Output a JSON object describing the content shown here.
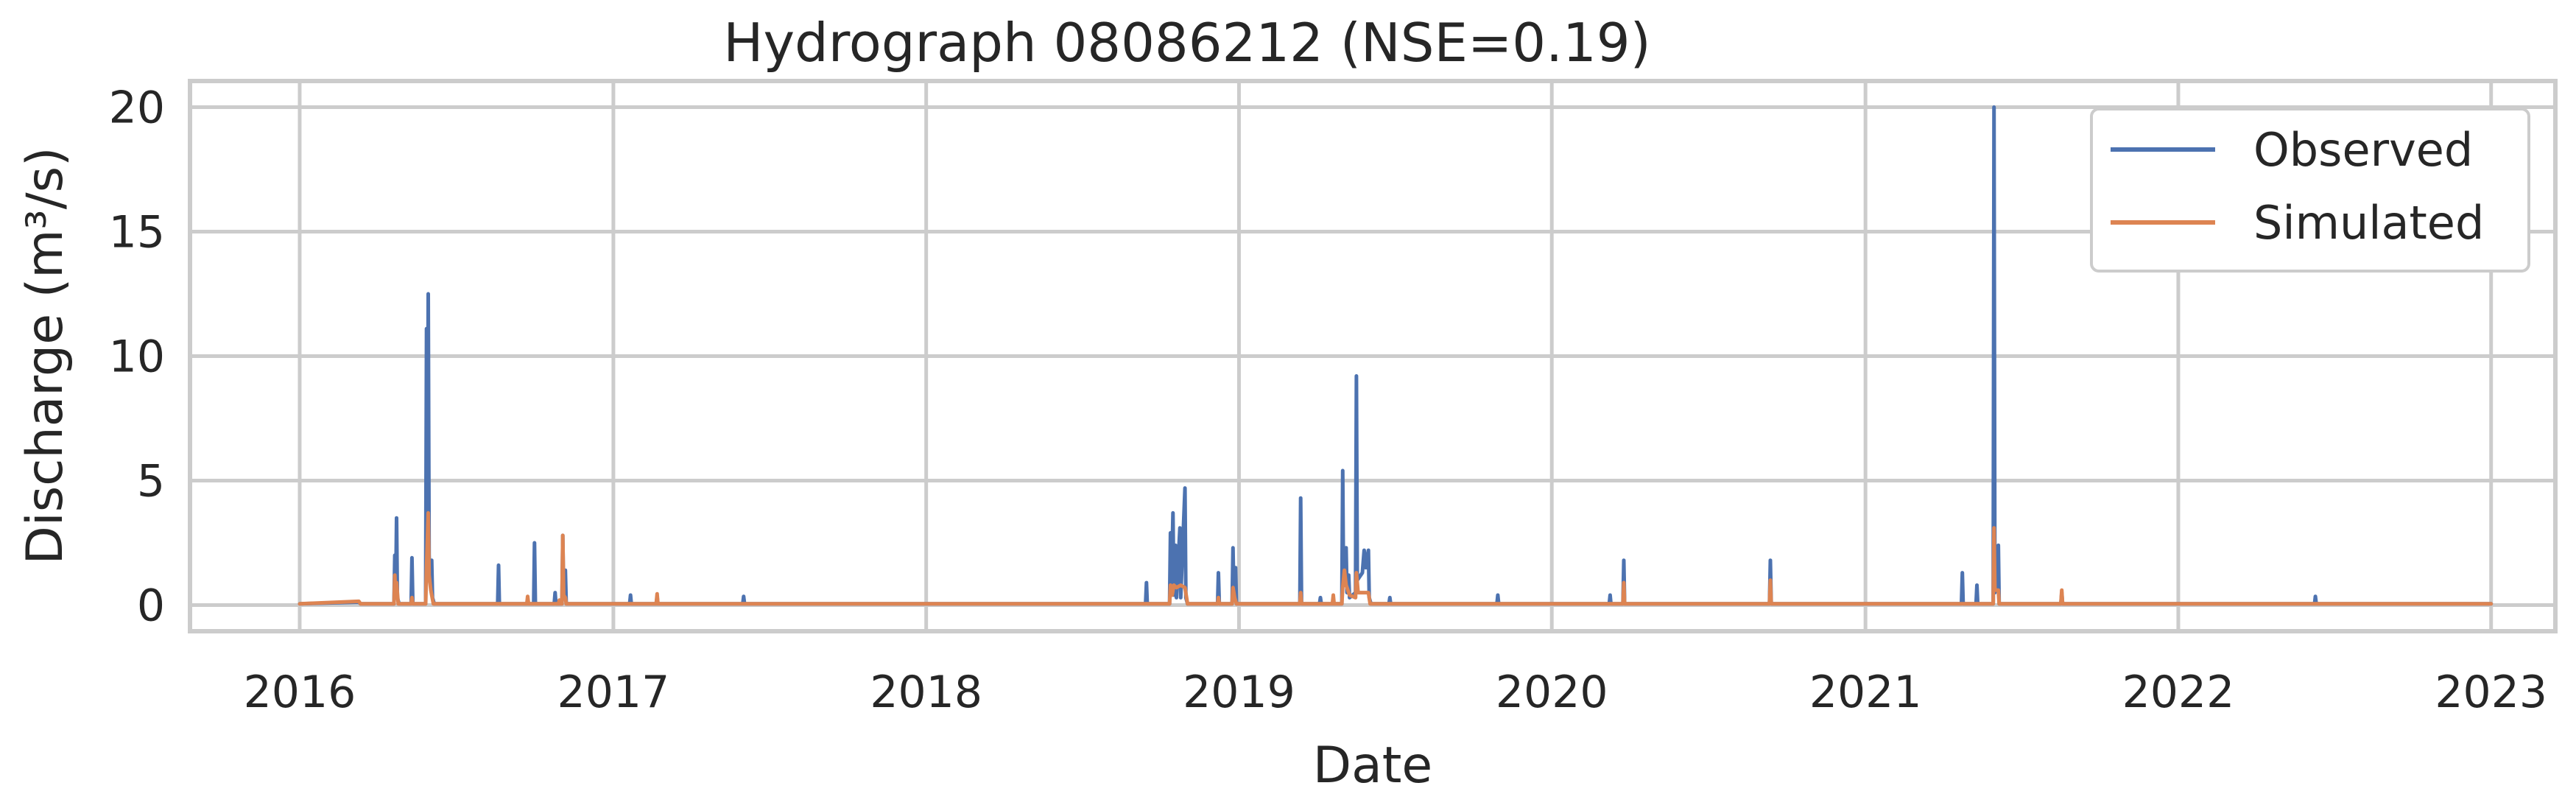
{
  "chart_data": {
    "type": "line",
    "title": "Hydrograph 08086212  (NSE=0.19)",
    "xlabel": "Date",
    "ylabel": "Discharge (m³/s)",
    "xlim": [
      "2015-08-26",
      "2023-03-17"
    ],
    "ylim": [
      -1.05,
      21.05
    ],
    "x_ticks": [
      "2016",
      "2017",
      "2018",
      "2019",
      "2020",
      "2021",
      "2022",
      "2023"
    ],
    "y_ticks": [
      0,
      5,
      10,
      15,
      20
    ],
    "grid": true,
    "legend_position": "top-right",
    "series": [
      {
        "name": "Observed",
        "color": "#4c72b0",
        "points": [
          [
            "2016-01-01",
            0.05
          ],
          [
            "2016-03-10",
            0.12
          ],
          [
            "2016-03-12",
            0.05
          ],
          [
            "2016-04-20",
            0.05
          ],
          [
            "2016-04-21",
            2.0
          ],
          [
            "2016-04-22",
            0.3
          ],
          [
            "2016-04-23",
            3.5
          ],
          [
            "2016-04-24",
            0.3
          ],
          [
            "2016-04-26",
            0.05
          ],
          [
            "2016-05-10",
            0.05
          ],
          [
            "2016-05-11",
            1.9
          ],
          [
            "2016-05-12",
            0.05
          ],
          [
            "2016-05-27",
            0.05
          ],
          [
            "2016-05-28",
            11.1
          ],
          [
            "2016-05-29",
            3.0
          ],
          [
            "2016-05-30",
            12.5
          ],
          [
            "2016-05-31",
            2.0
          ],
          [
            "2016-06-01",
            1.0
          ],
          [
            "2016-06-03",
            1.8
          ],
          [
            "2016-06-04",
            0.3
          ],
          [
            "2016-06-06",
            0.05
          ],
          [
            "2016-08-19",
            0.05
          ],
          [
            "2016-08-20",
            1.6
          ],
          [
            "2016-08-21",
            0.05
          ],
          [
            "2016-09-22",
            0.05
          ],
          [
            "2016-09-23",
            0.2
          ],
          [
            "2016-09-24",
            0.05
          ],
          [
            "2016-09-30",
            0.05
          ],
          [
            "2016-10-01",
            2.5
          ],
          [
            "2016-10-02",
            0.05
          ],
          [
            "2016-10-24",
            0.05
          ],
          [
            "2016-10-25",
            0.5
          ],
          [
            "2016-10-26",
            0.05
          ],
          [
            "2016-11-02",
            0.05
          ],
          [
            "2016-11-03",
            2.8
          ],
          [
            "2016-11-04",
            0.3
          ],
          [
            "2016-11-06",
            1.4
          ],
          [
            "2016-11-07",
            0.05
          ],
          [
            "2017-01-20",
            0.05
          ],
          [
            "2017-01-21",
            0.4
          ],
          [
            "2017-01-22",
            0.05
          ],
          [
            "2017-02-20",
            0.05
          ],
          [
            "2017-02-21",
            0.35
          ],
          [
            "2017-02-22",
            0.05
          ],
          [
            "2017-06-01",
            0.05
          ],
          [
            "2017-06-02",
            0.35
          ],
          [
            "2017-06-03",
            0.05
          ],
          [
            "2018-09-14",
            0.05
          ],
          [
            "2018-09-15",
            0.9
          ],
          [
            "2018-09-16",
            0.05
          ],
          [
            "2018-10-12",
            0.05
          ],
          [
            "2018-10-13",
            2.9
          ],
          [
            "2018-10-14",
            0.5
          ],
          [
            "2018-10-16",
            3.7
          ],
          [
            "2018-10-17",
            0.4
          ],
          [
            "2018-10-19",
            2.4
          ],
          [
            "2018-10-20",
            0.3
          ],
          [
            "2018-10-24",
            3.1
          ],
          [
            "2018-10-25",
            0.3
          ],
          [
            "2018-10-30",
            4.7
          ],
          [
            "2018-10-31",
            0.3
          ],
          [
            "2018-11-02",
            0.05
          ],
          [
            "2018-12-07",
            0.05
          ],
          [
            "2018-12-08",
            1.3
          ],
          [
            "2018-12-09",
            0.05
          ],
          [
            "2018-12-24",
            0.05
          ],
          [
            "2018-12-25",
            2.3
          ],
          [
            "2018-12-26",
            0.3
          ],
          [
            "2018-12-28",
            1.5
          ],
          [
            "2018-12-29",
            0.05
          ],
          [
            "2019-03-13",
            0.05
          ],
          [
            "2019-03-14",
            4.3
          ],
          [
            "2019-03-15",
            0.05
          ],
          [
            "2019-04-05",
            0.05
          ],
          [
            "2019-04-06",
            0.3
          ],
          [
            "2019-04-07",
            0.05
          ],
          [
            "2019-05-01",
            0.05
          ],
          [
            "2019-05-02",
            5.4
          ],
          [
            "2019-05-03",
            0.8
          ],
          [
            "2019-05-06",
            2.3
          ],
          [
            "2019-05-07",
            0.5
          ],
          [
            "2019-05-09",
            1.2
          ],
          [
            "2019-05-10",
            0.3
          ],
          [
            "2019-05-17",
            0.5
          ],
          [
            "2019-05-18",
            9.2
          ],
          [
            "2019-05-19",
            1.0
          ],
          [
            "2019-05-25",
            1.3
          ],
          [
            "2019-05-27",
            2.2
          ],
          [
            "2019-05-29",
            1.5
          ],
          [
            "2019-06-01",
            2.2
          ],
          [
            "2019-06-02",
            0.3
          ],
          [
            "2019-06-04",
            0.05
          ],
          [
            "2019-06-25",
            0.05
          ],
          [
            "2019-06-26",
            0.3
          ],
          [
            "2019-06-27",
            0.05
          ],
          [
            "2019-10-29",
            0.05
          ],
          [
            "2019-10-30",
            0.4
          ],
          [
            "2019-10-31",
            0.05
          ],
          [
            "2020-03-08",
            0.05
          ],
          [
            "2020-03-09",
            0.4
          ],
          [
            "2020-03-10",
            0.05
          ],
          [
            "2020-03-24",
            0.05
          ],
          [
            "2020-03-25",
            1.8
          ],
          [
            "2020-03-26",
            0.05
          ],
          [
            "2020-09-11",
            0.05
          ],
          [
            "2020-09-12",
            1.8
          ],
          [
            "2020-09-13",
            0.05
          ],
          [
            "2021-04-23",
            0.05
          ],
          [
            "2021-04-24",
            1.3
          ],
          [
            "2021-04-25",
            0.05
          ],
          [
            "2021-05-10",
            0.05
          ],
          [
            "2021-05-11",
            0.8
          ],
          [
            "2021-05-12",
            0.05
          ],
          [
            "2021-05-30",
            0.05
          ],
          [
            "2021-05-31",
            20.0
          ],
          [
            "2021-06-01",
            0.5
          ],
          [
            "2021-06-05",
            2.4
          ],
          [
            "2021-06-06",
            0.05
          ],
          [
            "2021-08-17",
            0.05
          ],
          [
            "2021-08-18",
            0.5
          ],
          [
            "2021-08-19",
            0.05
          ],
          [
            "2022-06-09",
            0.05
          ],
          [
            "2022-06-10",
            0.35
          ],
          [
            "2022-06-11",
            0.05
          ],
          [
            "2023-01-01",
            0.05
          ]
        ]
      },
      {
        "name": "Simulated",
        "color": "#dd8452",
        "points": [
          [
            "2016-01-01",
            0.05
          ],
          [
            "2016-03-10",
            0.15
          ],
          [
            "2016-03-12",
            0.05
          ],
          [
            "2016-04-20",
            0.05
          ],
          [
            "2016-04-21",
            1.2
          ],
          [
            "2016-04-22",
            0.3
          ],
          [
            "2016-04-23",
            0.9
          ],
          [
            "2016-04-25",
            0.05
          ],
          [
            "2016-05-10",
            0.05
          ],
          [
            "2016-05-11",
            0.3
          ],
          [
            "2016-05-12",
            0.05
          ],
          [
            "2016-05-27",
            0.05
          ],
          [
            "2016-05-28",
            1.5
          ],
          [
            "2016-05-30",
            3.7
          ],
          [
            "2016-05-31",
            1.2
          ],
          [
            "2016-06-02",
            0.6
          ],
          [
            "2016-06-05",
            0.05
          ],
          [
            "2016-09-22",
            0.05
          ],
          [
            "2016-09-23",
            0.35
          ],
          [
            "2016-09-24",
            0.05
          ],
          [
            "2016-10-29",
            0.05
          ],
          [
            "2016-10-30",
            0.2
          ],
          [
            "2016-10-31",
            0.05
          ],
          [
            "2016-11-02",
            0.05
          ],
          [
            "2016-11-03",
            2.8
          ],
          [
            "2016-11-04",
            0.4
          ],
          [
            "2016-11-06",
            0.3
          ],
          [
            "2016-11-07",
            0.05
          ],
          [
            "2017-02-20",
            0.05
          ],
          [
            "2017-02-21",
            0.45
          ],
          [
            "2017-02-22",
            0.05
          ],
          [
            "2018-10-12",
            0.05
          ],
          [
            "2018-10-13",
            0.8
          ],
          [
            "2018-10-15",
            0.4
          ],
          [
            "2018-10-17",
            0.8
          ],
          [
            "2018-10-20",
            0.7
          ],
          [
            "2018-10-25",
            0.8
          ],
          [
            "2018-10-30",
            0.7
          ],
          [
            "2018-11-02",
            0.05
          ],
          [
            "2018-12-07",
            0.05
          ],
          [
            "2018-12-08",
            0.3
          ],
          [
            "2018-12-09",
            0.05
          ],
          [
            "2018-12-24",
            0.05
          ],
          [
            "2018-12-25",
            0.7
          ],
          [
            "2018-12-27",
            0.3
          ],
          [
            "2018-12-29",
            0.05
          ],
          [
            "2019-03-13",
            0.05
          ],
          [
            "2019-03-14",
            0.5
          ],
          [
            "2019-03-15",
            0.05
          ],
          [
            "2019-04-20",
            0.05
          ],
          [
            "2019-04-21",
            0.4
          ],
          [
            "2019-04-22",
            0.05
          ],
          [
            "2019-05-01",
            0.05
          ],
          [
            "2019-05-02",
            0.7
          ],
          [
            "2019-05-04",
            1.4
          ],
          [
            "2019-05-06",
            0.8
          ],
          [
            "2019-05-10",
            0.4
          ],
          [
            "2019-05-17",
            0.3
          ],
          [
            "2019-05-18",
            1.3
          ],
          [
            "2019-05-20",
            0.5
          ],
          [
            "2019-05-27",
            0.5
          ],
          [
            "2019-06-01",
            0.5
          ],
          [
            "2019-06-03",
            0.05
          ],
          [
            "2020-03-24",
            0.05
          ],
          [
            "2020-03-25",
            0.9
          ],
          [
            "2020-03-26",
            0.05
          ],
          [
            "2020-09-11",
            0.05
          ],
          [
            "2020-09-12",
            1.0
          ],
          [
            "2020-09-13",
            0.05
          ],
          [
            "2021-05-30",
            0.05
          ],
          [
            "2021-05-31",
            3.1
          ],
          [
            "2021-06-01",
            0.6
          ],
          [
            "2021-06-05",
            0.6
          ],
          [
            "2021-06-06",
            0.05
          ],
          [
            "2021-08-17",
            0.05
          ],
          [
            "2021-08-18",
            0.6
          ],
          [
            "2021-08-19",
            0.05
          ],
          [
            "2023-01-01",
            0.05
          ]
        ]
      }
    ]
  }
}
